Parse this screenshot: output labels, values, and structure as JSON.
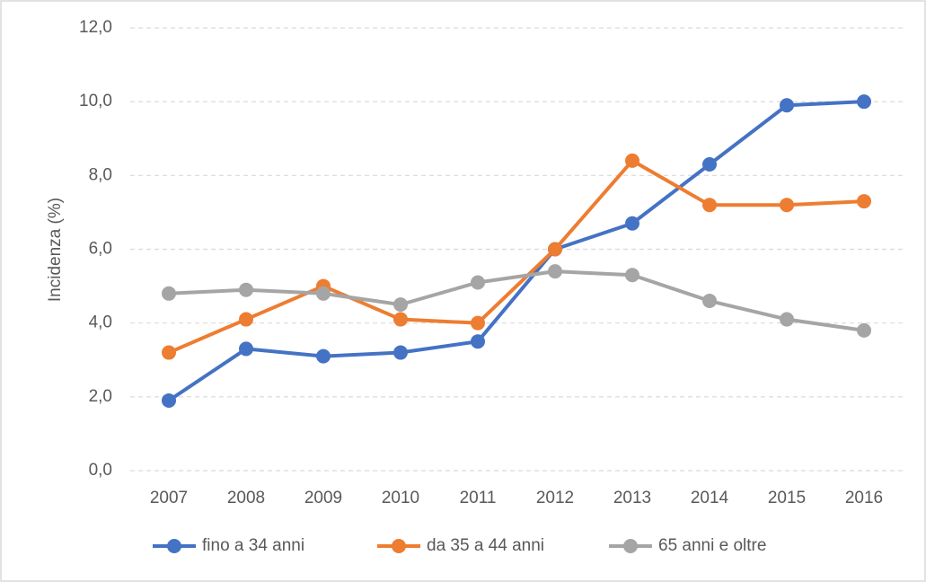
{
  "chart_data": {
    "type": "line",
    "y_label": "Incidenza (%)",
    "categories": [
      "2007",
      "2008",
      "2009",
      "2010",
      "2011",
      "2012",
      "2013",
      "2014",
      "2015",
      "2016"
    ],
    "series": [
      {
        "name": "fino a 34 anni",
        "color": "#4472c4",
        "values": [
          1.9,
          3.3,
          3.1,
          3.2,
          3.5,
          6.0,
          6.7,
          8.3,
          9.9,
          10.0
        ]
      },
      {
        "name": "da 35 a 44 anni",
        "color": "#ed7d31",
        "values": [
          3.2,
          4.1,
          5.0,
          4.1,
          4.0,
          6.0,
          8.4,
          7.2,
          7.2,
          7.3
        ]
      },
      {
        "name": "65 anni e oltre",
        "color": "#a5a5a5",
        "values": [
          4.8,
          4.9,
          4.8,
          4.5,
          5.1,
          5.4,
          5.3,
          4.6,
          4.1,
          3.8
        ]
      }
    ],
    "ylim": [
      0,
      12
    ],
    "yticks": [
      {
        "value": 0,
        "label": "0,0"
      },
      {
        "value": 2,
        "label": "2,0"
      },
      {
        "value": 4,
        "label": "4,0"
      },
      {
        "value": 6,
        "label": "6,0"
      },
      {
        "value": 8,
        "label": "8,0"
      },
      {
        "value": 10,
        "label": "10,0"
      },
      {
        "value": 12,
        "label": "12,0"
      }
    ],
    "grid": true,
    "legend": "bottom"
  }
}
